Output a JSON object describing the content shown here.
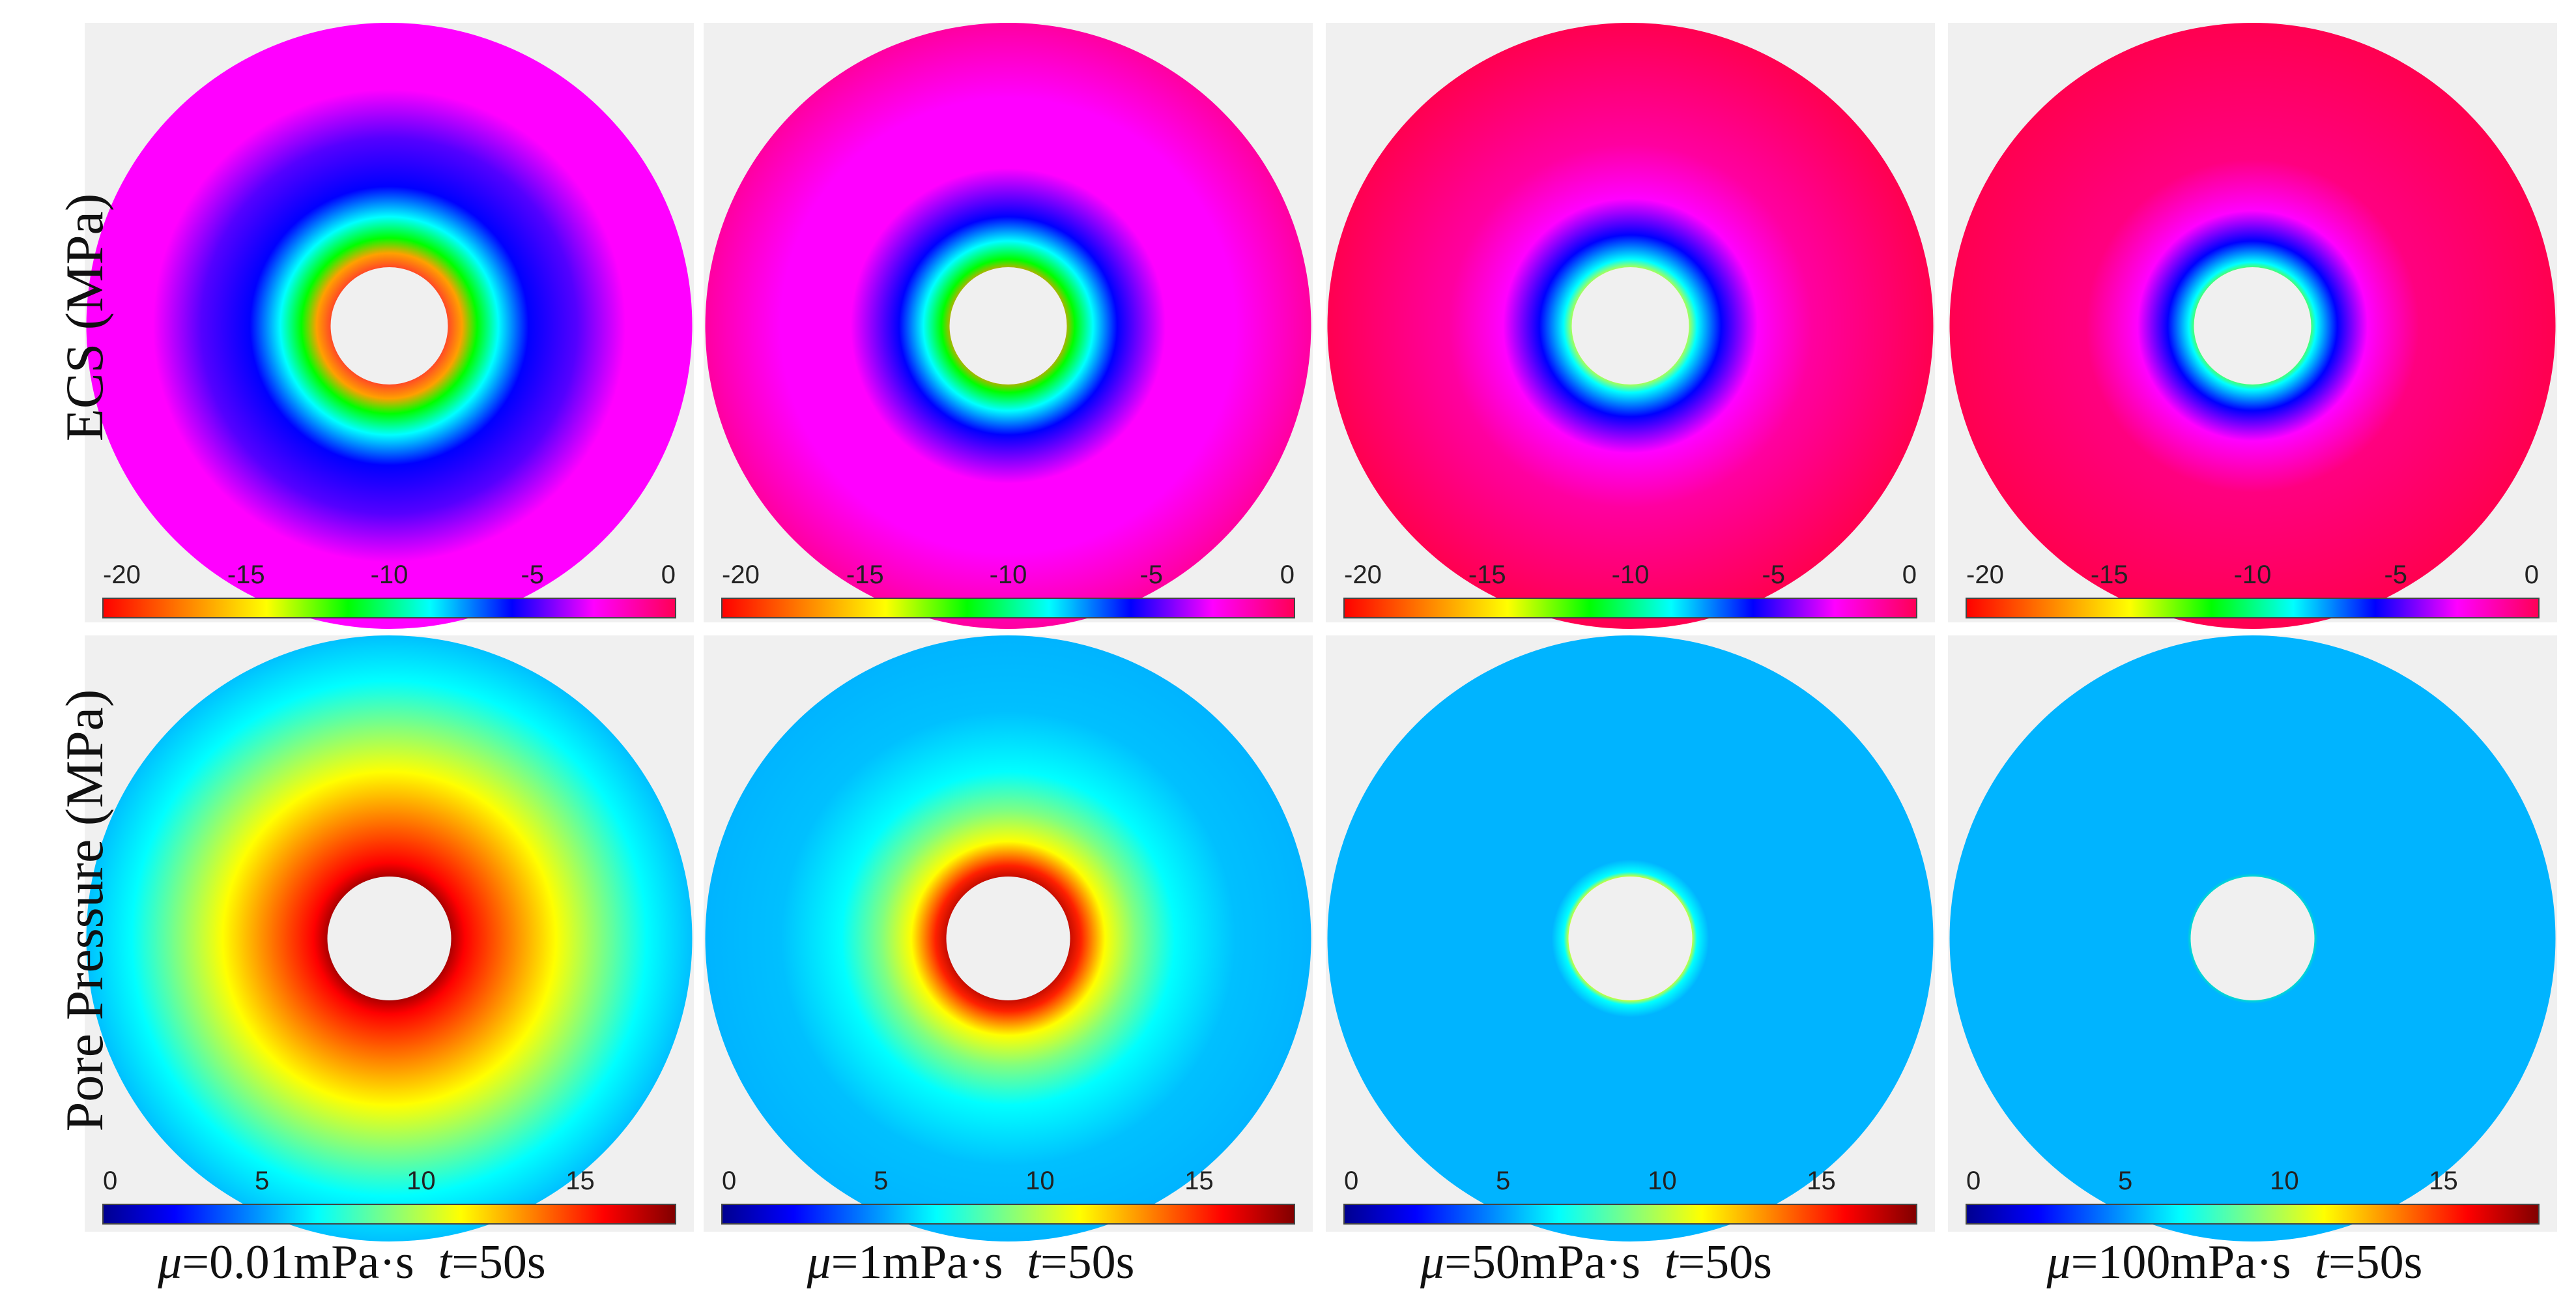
{
  "row_labels": [
    "ECS (MPa)",
    "Pore Pressure (MPa)"
  ],
  "column_labels": [
    {
      "mu_symbol": "μ",
      "mu_text": "=0.01mPa·s",
      "t_symbol": "t",
      "t_text": "=50s"
    },
    {
      "mu_symbol": "μ",
      "mu_text": "=1mPa·s",
      "t_symbol": "t",
      "t_text": "=50s"
    },
    {
      "mu_symbol": "μ",
      "mu_text": "=50mPa·s",
      "t_symbol": "t",
      "t_text": "=50s"
    },
    {
      "mu_symbol": "μ",
      "mu_text": "=100mPa·s",
      "t_symbol": "t",
      "t_text": "=50s"
    }
  ],
  "ecs_colorbar": {
    "ticks": [
      "-20",
      "-15",
      "-10",
      "-5",
      "0"
    ],
    "tick_values": [
      -20,
      -15,
      -10,
      -5,
      0
    ],
    "range": [
      -20,
      0
    ],
    "colors": [
      "#ff0000",
      "#ff8000",
      "#ffff00",
      "#00ff00",
      "#00ffff",
      "#0000ff",
      "#ff00ff",
      "#ff0055"
    ]
  },
  "pressure_colorbar": {
    "ticks": [
      "0",
      "5",
      "10",
      "15"
    ],
    "tick_values": [
      0,
      5,
      10,
      15
    ],
    "range": [
      0,
      18
    ],
    "colors": [
      "#00008f",
      "#0000ff",
      "#0080ff",
      "#00ffff",
      "#80ff80",
      "#ffff00",
      "#ff8000",
      "#ff0000",
      "#800000"
    ]
  },
  "panel_background": "#f0f0f0",
  "ecs_panels": [
    {
      "stops": [
        [
          0.18,
          "#ff3030"
        ],
        [
          0.24,
          "#ffa000"
        ],
        [
          0.29,
          "#00ff00"
        ],
        [
          0.36,
          "#00ffff"
        ],
        [
          0.46,
          "#0000ff"
        ],
        [
          0.62,
          "#5500ff"
        ],
        [
          0.78,
          "#ff00ff"
        ],
        [
          1.0,
          "#ff00ff"
        ]
      ]
    },
    {
      "stops": [
        [
          0.18,
          "#ff9000"
        ],
        [
          0.22,
          "#00ff00"
        ],
        [
          0.28,
          "#00ffff"
        ],
        [
          0.36,
          "#0000ff"
        ],
        [
          0.52,
          "#ff00ff"
        ],
        [
          0.75,
          "#ff00ff"
        ],
        [
          1.0,
          "#ff00a0"
        ]
      ]
    },
    {
      "stops": [
        [
          0.18,
          "#ffff00"
        ],
        [
          0.22,
          "#00ffff"
        ],
        [
          0.3,
          "#0000ff"
        ],
        [
          0.42,
          "#ff00ff"
        ],
        [
          0.6,
          "#ff00a0"
        ],
        [
          1.0,
          "#ff0050"
        ]
      ]
    },
    {
      "stops": [
        [
          0.18,
          "#80ff00"
        ],
        [
          0.21,
          "#00ffff"
        ],
        [
          0.28,
          "#0000ff"
        ],
        [
          0.38,
          "#ff00ff"
        ],
        [
          0.55,
          "#ff0080"
        ],
        [
          1.0,
          "#ff0050"
        ]
      ]
    }
  ],
  "pressure_panels": [
    {
      "stops": [
        [
          0.18,
          "#800000"
        ],
        [
          0.25,
          "#ff0000"
        ],
        [
          0.4,
          "#ff8000"
        ],
        [
          0.55,
          "#ffff00"
        ],
        [
          0.7,
          "#80ff80"
        ],
        [
          0.85,
          "#00ffff"
        ],
        [
          1.0,
          "#00c0ff"
        ]
      ]
    },
    {
      "stops": [
        [
          0.18,
          "#a00000"
        ],
        [
          0.24,
          "#ff2000"
        ],
        [
          0.32,
          "#ffff00"
        ],
        [
          0.42,
          "#80ff80"
        ],
        [
          0.55,
          "#00ffff"
        ],
        [
          0.75,
          "#00c0ff"
        ],
        [
          1.0,
          "#00b4ff"
        ]
      ]
    },
    {
      "stops": [
        [
          0.18,
          "#c00000"
        ],
        [
          0.2,
          "#ffff00"
        ],
        [
          0.22,
          "#00ffff"
        ],
        [
          0.26,
          "#00b4ff"
        ],
        [
          1.0,
          "#00b4ff"
        ]
      ]
    },
    {
      "stops": [
        [
          0.18,
          "#c04000"
        ],
        [
          0.195,
          "#00ffa0"
        ],
        [
          0.215,
          "#00b4ff"
        ],
        [
          1.0,
          "#00b4ff"
        ]
      ]
    }
  ]
}
